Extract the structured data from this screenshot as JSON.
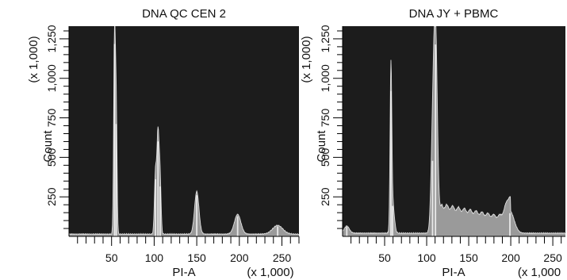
{
  "chart_data": [
    {
      "type": "area",
      "title": "DNA QC CEN 2",
      "xlabel": "PI-A",
      "x_unit_label": "(x 1,000)",
      "ylabel": "Count",
      "y_unit_label": "(x 1,000)",
      "xlim": [
        0,
        270
      ],
      "ylim": [
        0,
        1330
      ],
      "x_ticks": [
        50,
        100,
        150,
        200,
        250
      ],
      "x_tick_labels": [
        "50",
        "100",
        "150",
        "200",
        "250"
      ],
      "y_ticks": [
        250,
        500,
        750,
        1000,
        1250
      ],
      "y_tick_labels": [
        "250",
        "500",
        "750",
        "1,000",
        "1,250"
      ],
      "background_color": "#1c1c1c",
      "fill_color": "#9a9a9a",
      "highlight_color": "#f2f2f2",
      "grid": false,
      "peaks": [
        {
          "x": 53.5,
          "y": 1310,
          "width": 1.0
        },
        {
          "x": 55.5,
          "y": 760,
          "width": 0.9
        },
        {
          "x": 101.5,
          "y": 380,
          "width": 1.2
        },
        {
          "x": 104.5,
          "y": 640,
          "width": 1.3
        },
        {
          "x": 107.0,
          "y": 330,
          "width": 1.1
        },
        {
          "x": 150.0,
          "y": 270,
          "width": 2.6
        },
        {
          "x": 198.0,
          "y": 125,
          "width": 3.8
        },
        {
          "x": 245.0,
          "y": 55,
          "width": 6.0
        }
      ],
      "baseline": 12
    },
    {
      "type": "area",
      "title": "DNA JY + PBMC",
      "xlabel": "PI-A",
      "x_unit_label": "(x 1,000",
      "ylabel": "Count",
      "y_unit_label": "(x 1,000)",
      "xlim": [
        0,
        265
      ],
      "ylim": [
        0,
        1330
      ],
      "x_ticks": [
        50,
        100,
        150,
        200,
        250
      ],
      "x_tick_labels": [
        "50",
        "100",
        "150",
        "200",
        "250"
      ],
      "y_ticks": [
        250,
        500,
        750,
        1000,
        1250
      ],
      "y_tick_labels": [
        "250",
        "500",
        "750",
        "1,000",
        "1,250"
      ],
      "background_color": "#1c1c1c",
      "fill_color": "#9a9a9a",
      "highlight_color": "#f2f2f2",
      "grid": false,
      "peaks": [
        {
          "x": 5,
          "y": 45,
          "width": 3
        },
        {
          "x": 57.5,
          "y": 980,
          "width": 1.0
        },
        {
          "x": 59.5,
          "y": 190,
          "width": 2.0
        },
        {
          "x": 110.5,
          "y": 1300,
          "width": 2.2
        },
        {
          "x": 107.0,
          "y": 500,
          "width": 2.0
        },
        {
          "x": 199.0,
          "y": 140,
          "width": 5.0
        }
      ],
      "shoulder": {
        "from": 112,
        "to": 200,
        "start_y": 180,
        "end_y": 90
      },
      "baseline": 18
    }
  ]
}
